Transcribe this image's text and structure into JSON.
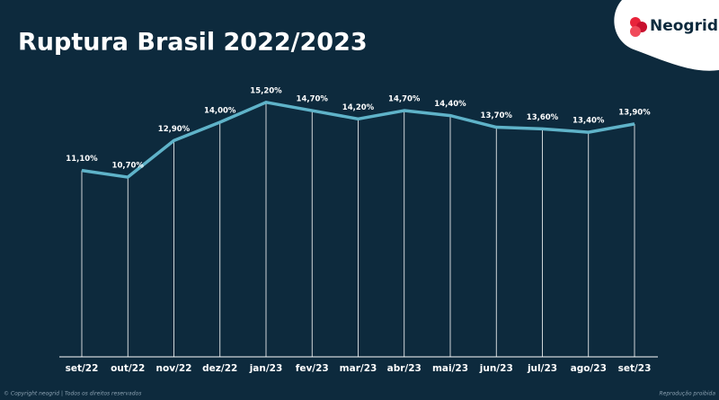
{
  "chart_data": {
    "type": "line",
    "title": "Ruptura Brasil 2022/2023",
    "categories": [
      "set/22",
      "out/22",
      "nov/22",
      "dez/22",
      "jan/23",
      "fev/23",
      "mar/23",
      "abr/23",
      "mai/23",
      "jun/23",
      "jul/23",
      "ago/23",
      "set/23"
    ],
    "values": [
      11.1,
      10.7,
      12.9,
      14.0,
      15.2,
      14.7,
      14.2,
      14.7,
      14.4,
      13.7,
      13.6,
      13.4,
      13.9
    ],
    "value_labels": [
      "11,10%",
      "10,70%",
      "12,90%",
      "14,00%",
      "15,20%",
      "14,70%",
      "14,20%",
      "14,70%",
      "14,40%",
      "13,70%",
      "13,60%",
      "13,40%",
      "13,90%"
    ],
    "color": "#5fb3c9",
    "ylim": [
      0,
      16
    ]
  },
  "logo": "Neogrid",
  "footer": {
    "left": "© Copyright neogrid | Todos os direitos reservados",
    "right": "Reprodução proibida"
  }
}
